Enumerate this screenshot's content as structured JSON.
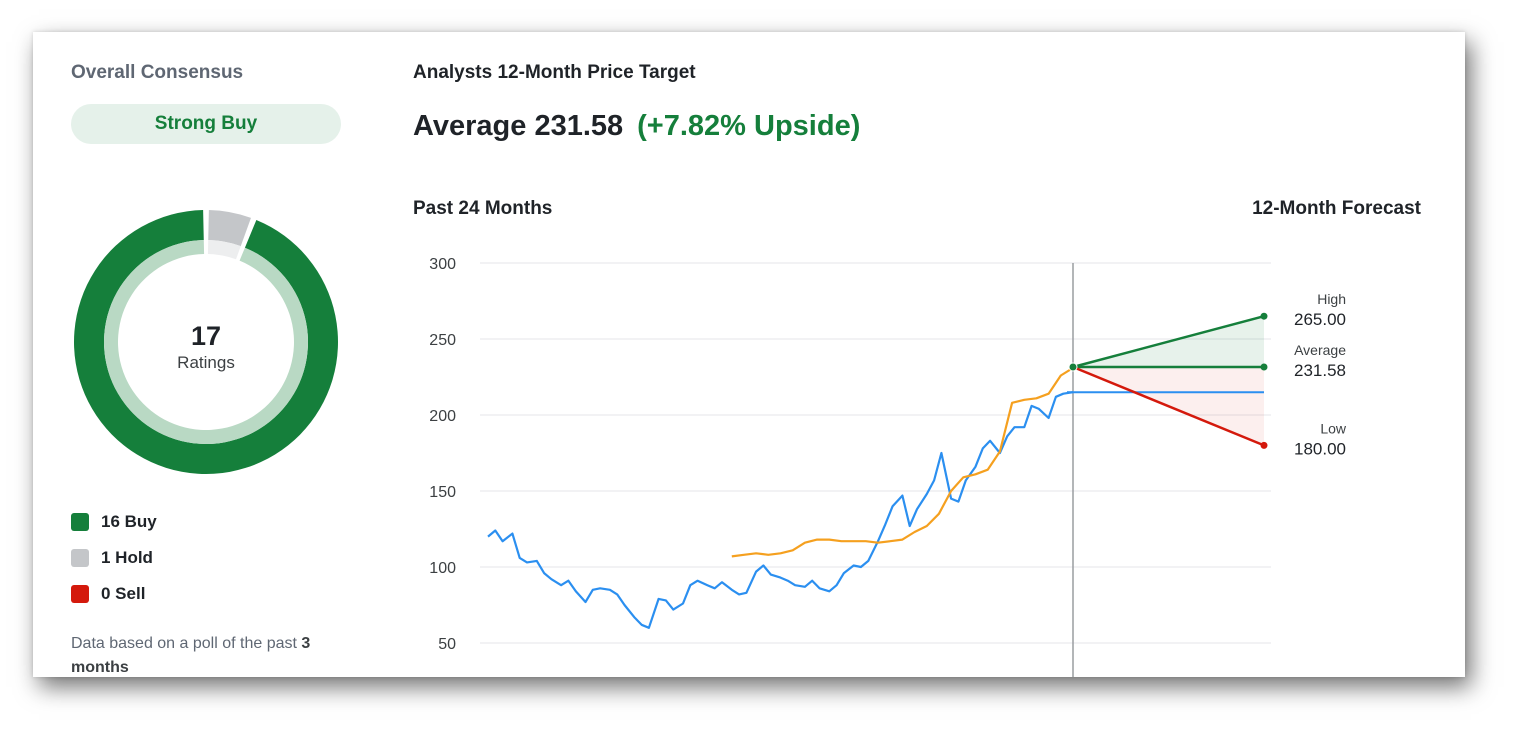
{
  "consensus": {
    "title": "Overall Consensus",
    "rating": "Strong Buy",
    "total_ratings": "17",
    "ratings_label": "Ratings",
    "legend": [
      {
        "label": "16 Buy",
        "count": 16,
        "color": "#157f3b"
      },
      {
        "label": "1 Hold",
        "count": 1,
        "color": "#c4c6c9"
      },
      {
        "label": "0 Sell",
        "count": 0,
        "color": "#d4190c"
      }
    ],
    "note_prefix": "Data based on a poll of the past ",
    "note_bold": "3 months"
  },
  "price_target": {
    "title": "Analysts 12-Month Price Target",
    "average_text": "Average 231.58",
    "upside_text": "(+7.82% Upside)"
  },
  "chart_labels": {
    "past": "Past 24 Months",
    "forecast": "12-Month Forecast"
  },
  "chart_data": {
    "type": "line",
    "y_ticks": [
      300,
      250,
      200,
      150,
      100,
      50
    ],
    "ylim": [
      50,
      300
    ],
    "grid": true,
    "x_range": [
      0,
      36
    ],
    "series": [
      {
        "color": "#2b8ff0",
        "x": [
          0,
          0.3,
          0.6,
          1,
          1.3,
          1.6,
          2,
          2.3,
          2.6,
          3,
          3.3,
          3.6,
          4,
          4.3,
          4.6,
          5,
          5.3,
          5.6,
          6,
          6.3,
          6.6,
          7,
          7.3,
          7.6,
          8,
          8.3,
          8.6,
          9,
          9.3,
          9.6,
          10,
          10.3,
          10.6,
          11,
          11.3,
          11.6,
          12,
          12.3,
          12.6,
          13,
          13.3,
          13.6,
          14,
          14.3,
          14.6,
          15,
          15.3,
          15.6,
          16,
          16.3,
          16.6,
          17,
          17.3,
          17.6,
          18,
          18.3,
          18.6,
          19,
          19.3,
          19.6,
          20,
          20.3,
          20.6,
          21,
          21.3,
          21.6,
          22,
          22.3,
          22.6,
          23,
          23.3,
          23.6,
          24
        ],
        "values": [
          120,
          124,
          117,
          122,
          106,
          103,
          104,
          96,
          92,
          88,
          91,
          84,
          77,
          85,
          86,
          85,
          82,
          75,
          67,
          62,
          60,
          79,
          78,
          72,
          76,
          88,
          91,
          88,
          86,
          90,
          85,
          82,
          83,
          97,
          101,
          95,
          93,
          91,
          88,
          87,
          91,
          86,
          84,
          88,
          96,
          101,
          100,
          104,
          117,
          128,
          140,
          147,
          127,
          138,
          148,
          157,
          175,
          145,
          143,
          157,
          166,
          178,
          183,
          175,
          186,
          192,
          192,
          206,
          204,
          198,
          212,
          214,
          215
        ]
      },
      {
        "color": "#f5a01f",
        "x": [
          10,
          10.5,
          11,
          11.5,
          12,
          12.5,
          13,
          13.5,
          14,
          14.5,
          15,
          15.5,
          16,
          16.5,
          17,
          17.5,
          18,
          18.5,
          19,
          19.5,
          20,
          20.5,
          21,
          21.5,
          22,
          22.5,
          23,
          23.5,
          24
        ],
        "values": [
          107,
          108,
          109,
          108,
          109,
          111,
          116,
          118,
          118,
          117,
          117,
          117,
          116,
          117,
          118,
          123,
          127,
          135,
          150,
          159,
          161,
          164,
          176,
          208,
          210,
          211,
          214,
          226,
          231
        ]
      }
    ],
    "current_price": 215,
    "current_price_color": "#2b8ff0",
    "forecast": [
      {
        "label": "High",
        "value_text": "265.00",
        "value": 265,
        "color": "#157f3b"
      },
      {
        "label": "Average",
        "value_text": "231.58",
        "value": 231.58,
        "color": "#157f3b"
      },
      {
        "label": "Low",
        "value_text": "180.00",
        "value": 180,
        "color": "#d4190c"
      }
    ],
    "forecast_start": 231.58
  }
}
